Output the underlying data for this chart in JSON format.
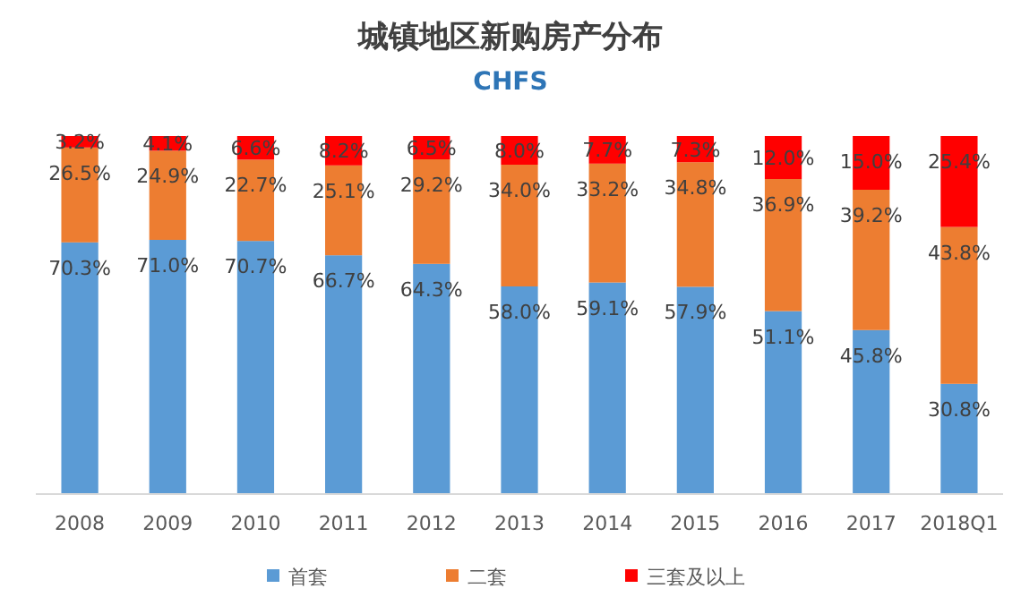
{
  "chart_data": {
    "type": "bar",
    "stacked": true,
    "title": "城镇地区新购房产分布",
    "subtitle": "CHFS",
    "legend": "bottom",
    "tick_labels": "x",
    "categories": [
      "2008",
      "2009",
      "2010",
      "2011",
      "2012",
      "2013",
      "2014",
      "2015",
      "2016",
      "2017",
      "2018Q1"
    ],
    "series": [
      {
        "name": "首套",
        "color": "#5b9bd5",
        "values": [
          70.3,
          71.0,
          70.7,
          66.7,
          64.3,
          58.0,
          59.1,
          57.9,
          51.1,
          45.8,
          30.8
        ],
        "value_labels": [
          "70.3%",
          "71.0%",
          "70.7%",
          "66.7%",
          "64.3%",
          "58.0%",
          "59.1%",
          "57.9%",
          "51.1%",
          "45.8%",
          "30.8%"
        ]
      },
      {
        "name": "二套",
        "color": "#ed7d31",
        "values": [
          26.5,
          24.9,
          22.7,
          25.1,
          29.2,
          34.0,
          33.2,
          34.8,
          36.9,
          39.2,
          43.8
        ],
        "value_labels": [
          "26.5%",
          "24.9%",
          "22.7%",
          "25.1%",
          "29.2%",
          "34.0%",
          "33.2%",
          "34.8%",
          "36.9%",
          "39.2%",
          "43.8%"
        ]
      },
      {
        "name": "三套及以上",
        "color": "#ff0000",
        "values": [
          3.2,
          4.1,
          6.6,
          8.2,
          6.5,
          8.0,
          7.7,
          7.3,
          12.0,
          15.0,
          25.4
        ],
        "value_labels": [
          "3.2%",
          "4.1%",
          "6.6%",
          "8.2%",
          "6.5%",
          "8.0%",
          "7.7%",
          "7.3%",
          "12.0%",
          "15.0%",
          "25.4%"
        ]
      }
    ]
  }
}
